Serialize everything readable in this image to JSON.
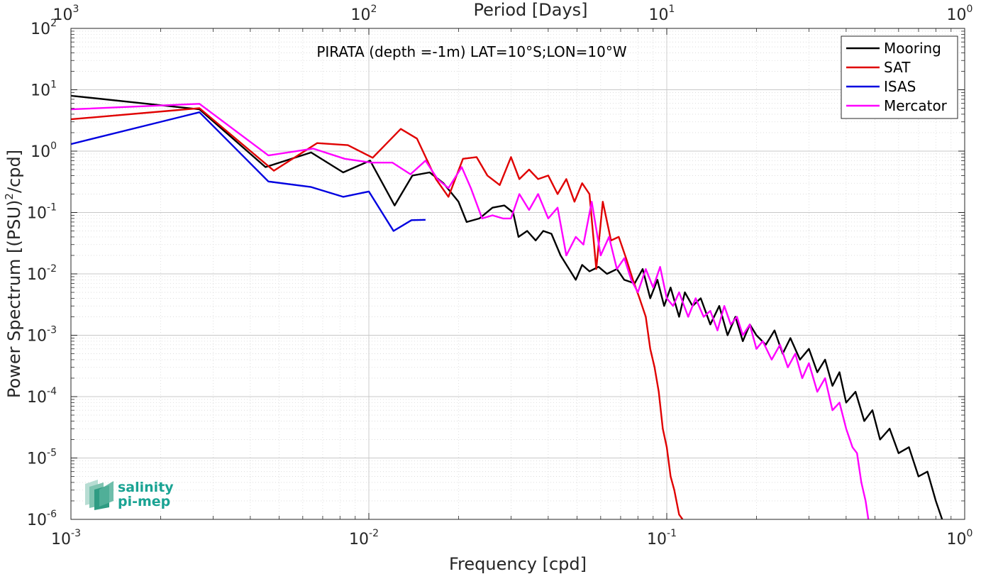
{
  "chart_data": {
    "type": "line",
    "title": "PIRATA (depth =-1m) LAT=10°S;LON=10°W",
    "xlabel": "Frequency [cpd]",
    "ylabel": "Power Spectrum [(PSU)²/cpd]",
    "ylabel_base": "Power Spectrum [(PSU)",
    "ylabel_sup": "2",
    "ylabel_tail": "/cpd]",
    "x2label": "Period [Days]",
    "xscale": "log",
    "yscale": "log",
    "xlim": [
      0.001,
      1
    ],
    "ylim": [
      1e-06,
      100
    ],
    "grid": true,
    "legend_position": "top-right",
    "x_ticks": [
      {
        "base": "10",
        "exp": "-3"
      },
      {
        "base": "10",
        "exp": "-2"
      },
      {
        "base": "10",
        "exp": "-1"
      },
      {
        "base": "10",
        "exp": "0"
      }
    ],
    "x2_ticks": [
      {
        "base": "10",
        "exp": "3"
      },
      {
        "base": "10",
        "exp": "2"
      },
      {
        "base": "10",
        "exp": "1"
      },
      {
        "base": "10",
        "exp": "0"
      }
    ],
    "y_ticks": [
      {
        "base": "10",
        "exp": "-6"
      },
      {
        "base": "10",
        "exp": "-5"
      },
      {
        "base": "10",
        "exp": "-4"
      },
      {
        "base": "10",
        "exp": "-3"
      },
      {
        "base": "10",
        "exp": "-2"
      },
      {
        "base": "10",
        "exp": "-1"
      },
      {
        "base": "10",
        "exp": "0"
      },
      {
        "base": "10",
        "exp": "1"
      },
      {
        "base": "10",
        "exp": "2"
      }
    ],
    "series": [
      {
        "name": "Mooring",
        "color": "#000000",
        "points": [
          [
            0.001,
            8.0
          ],
          [
            0.0027,
            4.8
          ],
          [
            0.0045,
            0.55
          ],
          [
            0.0064,
            0.95
          ],
          [
            0.0082,
            0.45
          ],
          [
            0.0101,
            0.7
          ],
          [
            0.0122,
            0.13
          ],
          [
            0.014,
            0.4
          ],
          [
            0.016,
            0.45
          ],
          [
            0.0178,
            0.3
          ],
          [
            0.02,
            0.15
          ],
          [
            0.0213,
            0.07
          ],
          [
            0.0235,
            0.08
          ],
          [
            0.026,
            0.12
          ],
          [
            0.0285,
            0.13
          ],
          [
            0.0305,
            0.1
          ],
          [
            0.0318,
            0.04
          ],
          [
            0.034,
            0.05
          ],
          [
            0.0363,
            0.035
          ],
          [
            0.0385,
            0.05
          ],
          [
            0.041,
            0.045
          ],
          [
            0.044,
            0.02
          ],
          [
            0.047,
            0.012
          ],
          [
            0.0495,
            0.008
          ],
          [
            0.052,
            0.014
          ],
          [
            0.055,
            0.011
          ],
          [
            0.059,
            0.013
          ],
          [
            0.063,
            0.01
          ],
          [
            0.068,
            0.012
          ],
          [
            0.072,
            0.008
          ],
          [
            0.078,
            0.007
          ],
          [
            0.083,
            0.012
          ],
          [
            0.088,
            0.004
          ],
          [
            0.093,
            0.008
          ],
          [
            0.098,
            0.003
          ],
          [
            0.103,
            0.006
          ],
          [
            0.11,
            0.002
          ],
          [
            0.115,
            0.005
          ],
          [
            0.122,
            0.003
          ],
          [
            0.13,
            0.004
          ],
          [
            0.14,
            0.0015
          ],
          [
            0.15,
            0.003
          ],
          [
            0.16,
            0.001
          ],
          [
            0.17,
            0.002
          ],
          [
            0.18,
            0.0008
          ],
          [
            0.19,
            0.0015
          ],
          [
            0.2,
            0.001
          ],
          [
            0.215,
            0.0007
          ],
          [
            0.23,
            0.0012
          ],
          [
            0.245,
            0.0005
          ],
          [
            0.26,
            0.0009
          ],
          [
            0.28,
            0.0004
          ],
          [
            0.3,
            0.0006
          ],
          [
            0.32,
            0.00025
          ],
          [
            0.34,
            0.0004
          ],
          [
            0.36,
            0.00015
          ],
          [
            0.38,
            0.00025
          ],
          [
            0.4,
            8e-05
          ],
          [
            0.43,
            0.00012
          ],
          [
            0.46,
            4e-05
          ],
          [
            0.49,
            6e-05
          ],
          [
            0.52,
            2e-05
          ],
          [
            0.56,
            3e-05
          ],
          [
            0.6,
            1.2e-05
          ],
          [
            0.65,
            1.5e-05
          ],
          [
            0.7,
            5e-06
          ],
          [
            0.75,
            6e-06
          ],
          [
            0.8,
            2e-06
          ],
          [
            0.84,
            1e-06
          ]
        ]
      },
      {
        "name": "SAT",
        "color": "#e00000",
        "points": [
          [
            0.001,
            3.3
          ],
          [
            0.0027,
            5.0
          ],
          [
            0.0048,
            0.48
          ],
          [
            0.0067,
            1.35
          ],
          [
            0.0085,
            1.25
          ],
          [
            0.0103,
            0.78
          ],
          [
            0.0128,
            2.3
          ],
          [
            0.0145,
            1.6
          ],
          [
            0.0168,
            0.35
          ],
          [
            0.0185,
            0.18
          ],
          [
            0.0207,
            0.75
          ],
          [
            0.023,
            0.8
          ],
          [
            0.025,
            0.4
          ],
          [
            0.0275,
            0.28
          ],
          [
            0.03,
            0.8
          ],
          [
            0.032,
            0.35
          ],
          [
            0.0345,
            0.5
          ],
          [
            0.037,
            0.35
          ],
          [
            0.04,
            0.4
          ],
          [
            0.043,
            0.2
          ],
          [
            0.046,
            0.35
          ],
          [
            0.049,
            0.15
          ],
          [
            0.052,
            0.3
          ],
          [
            0.055,
            0.2
          ],
          [
            0.058,
            0.012
          ],
          [
            0.061,
            0.15
          ],
          [
            0.065,
            0.035
          ],
          [
            0.069,
            0.04
          ],
          [
            0.073,
            0.018
          ],
          [
            0.077,
            0.008
          ],
          [
            0.081,
            0.004
          ],
          [
            0.085,
            0.002
          ],
          [
            0.088,
            0.0006
          ],
          [
            0.091,
            0.0003
          ],
          [
            0.094,
            0.00012
          ],
          [
            0.097,
            3e-05
          ],
          [
            0.1,
            1.5e-05
          ],
          [
            0.103,
            5e-06
          ],
          [
            0.106,
            3e-06
          ],
          [
            0.11,
            1.2e-06
          ],
          [
            0.113,
            1e-06
          ]
        ]
      },
      {
        "name": "ISAS",
        "color": "#0000e0",
        "points": [
          [
            0.001,
            1.3
          ],
          [
            0.0027,
            4.3
          ],
          [
            0.0046,
            0.32
          ],
          [
            0.0064,
            0.26
          ],
          [
            0.0082,
            0.18
          ],
          [
            0.01,
            0.22
          ],
          [
            0.0121,
            0.05
          ],
          [
            0.0139,
            0.075
          ],
          [
            0.0155,
            0.076
          ]
        ]
      },
      {
        "name": "Mercator",
        "color": "#ff00ff",
        "points": [
          [
            0.001,
            4.8
          ],
          [
            0.0027,
            5.9
          ],
          [
            0.0046,
            0.85
          ],
          [
            0.0065,
            1.1
          ],
          [
            0.0083,
            0.75
          ],
          [
            0.0102,
            0.65
          ],
          [
            0.012,
            0.65
          ],
          [
            0.0138,
            0.42
          ],
          [
            0.0155,
            0.7
          ],
          [
            0.017,
            0.35
          ],
          [
            0.0185,
            0.25
          ],
          [
            0.0205,
            0.55
          ],
          [
            0.022,
            0.25
          ],
          [
            0.024,
            0.08
          ],
          [
            0.026,
            0.09
          ],
          [
            0.0282,
            0.08
          ],
          [
            0.03,
            0.08
          ],
          [
            0.032,
            0.2
          ],
          [
            0.0345,
            0.11
          ],
          [
            0.037,
            0.2
          ],
          [
            0.04,
            0.08
          ],
          [
            0.043,
            0.12
          ],
          [
            0.046,
            0.02
          ],
          [
            0.0495,
            0.04
          ],
          [
            0.0525,
            0.03
          ],
          [
            0.056,
            0.15
          ],
          [
            0.06,
            0.02
          ],
          [
            0.064,
            0.04
          ],
          [
            0.068,
            0.012
          ],
          [
            0.072,
            0.018
          ],
          [
            0.076,
            0.008
          ],
          [
            0.08,
            0.005
          ],
          [
            0.085,
            0.012
          ],
          [
            0.09,
            0.006
          ],
          [
            0.095,
            0.013
          ],
          [
            0.1,
            0.004
          ],
          [
            0.105,
            0.003
          ],
          [
            0.11,
            0.005
          ],
          [
            0.118,
            0.002
          ],
          [
            0.125,
            0.004
          ],
          [
            0.133,
            0.002
          ],
          [
            0.14,
            0.0025
          ],
          [
            0.148,
            0.0012
          ],
          [
            0.156,
            0.003
          ],
          [
            0.164,
            0.0015
          ],
          [
            0.172,
            0.002
          ],
          [
            0.18,
            0.001
          ],
          [
            0.19,
            0.0015
          ],
          [
            0.2,
            0.0006
          ],
          [
            0.21,
            0.0008
          ],
          [
            0.225,
            0.0004
          ],
          [
            0.24,
            0.0007
          ],
          [
            0.255,
            0.0003
          ],
          [
            0.27,
            0.0005
          ],
          [
            0.285,
            0.0002
          ],
          [
            0.3,
            0.00035
          ],
          [
            0.32,
            0.00012
          ],
          [
            0.34,
            0.0002
          ],
          [
            0.36,
            6e-05
          ],
          [
            0.38,
            8e-05
          ],
          [
            0.4,
            3e-05
          ],
          [
            0.42,
            1.5e-05
          ],
          [
            0.435,
            1.2e-05
          ],
          [
            0.45,
            4e-06
          ],
          [
            0.465,
            2e-06
          ],
          [
            0.475,
            1e-06
          ]
        ]
      }
    ]
  },
  "logo": {
    "line1": "salinity",
    "line2": "pi-mep",
    "color": "#1aa393"
  }
}
